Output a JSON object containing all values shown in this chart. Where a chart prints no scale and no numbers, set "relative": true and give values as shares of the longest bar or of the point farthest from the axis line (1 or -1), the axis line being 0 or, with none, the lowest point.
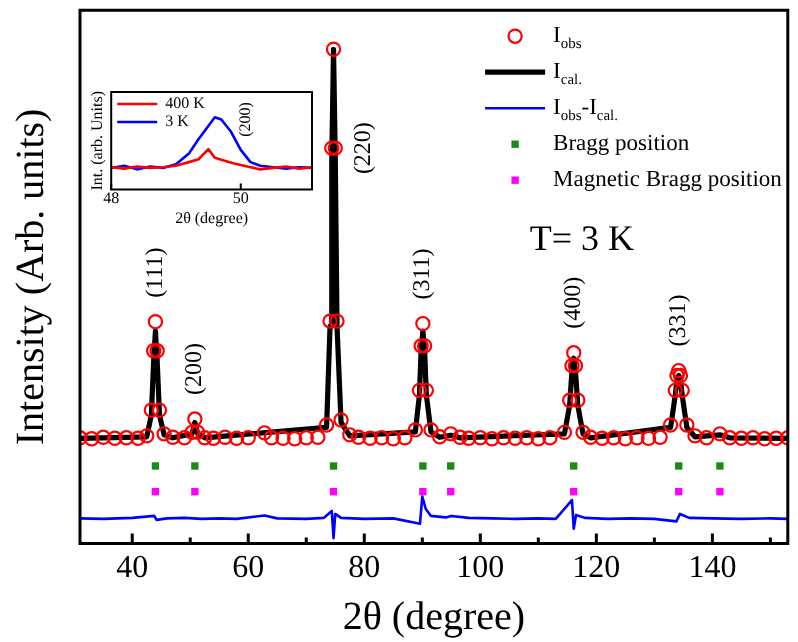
{
  "chart_data": [
    {
      "type": "line",
      "xlabel": "2θ (degree)",
      "ylabel": "Intensity (Arb. units)",
      "relative": true,
      "legend": "top right",
      "grid": false,
      "xlim": [
        31,
        153
      ],
      "xticks": [
        40,
        {
          "value": 50,
          "label": null
        },
        60,
        {
          "value": 70,
          "label": null
        },
        80,
        {
          "value": 90,
          "label": null
        },
        100,
        {
          "value": 110,
          "label": null
        },
        120,
        {
          "value": 130,
          "label": null
        },
        140,
        {
          "value": 150,
          "label": null
        }
      ],
      "series": [
        {
          "name": "I$_{obs}$",
          "type": "scatter",
          "marker": "circle",
          "color": "#ff0000",
          "x": [
            31,
            33,
            35,
            37,
            39,
            41,
            42.5,
            43.3,
            43.7,
            44.0,
            44.3,
            44.7,
            45.5,
            47,
            49,
            50.3,
            50.8,
            51.3,
            52.5,
            54,
            56,
            58,
            60,
            62.8,
            64,
            66,
            68,
            70,
            72,
            73.5,
            74.1,
            74.4,
            74.7,
            75.0,
            75.3,
            76,
            77.5,
            79,
            81,
            83,
            85,
            87,
            88.8,
            89.5,
            89.8,
            90.1,
            90.4,
            90.7,
            91.5,
            93,
            94.9,
            96.5,
            98,
            100,
            102,
            104,
            106,
            108,
            110,
            112,
            114.5,
            115.4,
            115.8,
            116.1,
            116.4,
            116.8,
            117.7,
            119,
            121,
            123,
            125,
            127,
            129,
            131,
            132.8,
            133.6,
            133.9,
            134.2,
            134.5,
            134.8,
            135.6,
            137,
            139,
            141.3,
            143,
            145,
            147,
            149,
            151,
            153
          ],
          "values": [
            0.214,
            0.212,
            0.215,
            0.213,
            0.214,
            0.213,
            0.218,
            0.27,
            0.39,
            0.449,
            0.39,
            0.27,
            0.222,
            0.215,
            0.214,
            0.225,
            0.252,
            0.225,
            0.214,
            0.213,
            0.215,
            0.213,
            0.214,
            0.224,
            0.214,
            0.213,
            0.212,
            0.214,
            0.215,
            0.24,
            0.45,
            0.8,
            1.0,
            0.8,
            0.45,
            0.25,
            0.22,
            0.215,
            0.213,
            0.214,
            0.212,
            0.214,
            0.23,
            0.31,
            0.4,
            0.445,
            0.4,
            0.31,
            0.23,
            0.216,
            0.222,
            0.215,
            0.213,
            0.214,
            0.212,
            0.214,
            0.213,
            0.214,
            0.212,
            0.214,
            0.225,
            0.29,
            0.36,
            0.386,
            0.36,
            0.29,
            0.225,
            0.215,
            0.213,
            0.214,
            0.212,
            0.214,
            0.213,
            0.215,
            0.24,
            0.31,
            0.34,
            0.35,
            0.34,
            0.31,
            0.24,
            0.218,
            0.214,
            0.222,
            0.214,
            0.213,
            0.214,
            0.212,
            0.213,
            0.214
          ]
        },
        {
          "name": "I$_{cal.}$",
          "type": "line",
          "color": "#000000",
          "x": [
            31,
            42.5,
            43.3,
            43.7,
            44.0,
            44.3,
            44.7,
            45.5,
            47,
            50.3,
            50.8,
            51.3,
            52.5,
            73.5,
            74.1,
            74.4,
            74.7,
            75.0,
            75.3,
            76,
            77.5,
            88.8,
            89.5,
            89.8,
            90.1,
            90.4,
            90.7,
            91.5,
            93,
            94.9,
            96.5,
            114.5,
            115.4,
            115.8,
            116.1,
            116.4,
            116.8,
            117.7,
            119,
            132.8,
            133.6,
            133.9,
            134.2,
            134.5,
            134.8,
            135.6,
            137,
            141.3,
            143,
            153
          ],
          "values": [
            0.213,
            0.216,
            0.26,
            0.37,
            0.43,
            0.37,
            0.26,
            0.22,
            0.214,
            0.222,
            0.245,
            0.222,
            0.214,
            0.235,
            0.44,
            0.78,
            1.0,
            0.78,
            0.44,
            0.245,
            0.218,
            0.226,
            0.3,
            0.39,
            0.43,
            0.39,
            0.3,
            0.226,
            0.215,
            0.219,
            0.214,
            0.222,
            0.28,
            0.35,
            0.375,
            0.35,
            0.28,
            0.222,
            0.214,
            0.235,
            0.3,
            0.33,
            0.34,
            0.33,
            0.3,
            0.235,
            0.216,
            0.22,
            0.214,
            0.213
          ]
        },
        {
          "name": "I$_{obs}$-I$_{cal.}$",
          "type": "line",
          "color": "#0000ff",
          "x": [
            31,
            35,
            40,
            43.8,
            44.2,
            46,
            49,
            52,
            55,
            58,
            62.8,
            65,
            70,
            73,
            74.4,
            74.7,
            75.0,
            76,
            80,
            85,
            89.6,
            90.0,
            90.6,
            91.5,
            94,
            95,
            98,
            102,
            106,
            110,
            113,
            115.8,
            116.1,
            116.5,
            118,
            122,
            126,
            130,
            133.8,
            134.4,
            136,
            140,
            145,
            150,
            153
          ],
          "values": [
            0.051,
            0.05,
            0.052,
            0.056,
            0.048,
            0.051,
            0.052,
            0.05,
            0.051,
            0.05,
            0.057,
            0.051,
            0.05,
            0.052,
            0.066,
            0.011,
            0.06,
            0.052,
            0.05,
            0.051,
            0.04,
            0.095,
            0.07,
            0.056,
            0.053,
            0.056,
            0.052,
            0.051,
            0.05,
            0.051,
            0.05,
            0.088,
            0.03,
            0.058,
            0.052,
            0.05,
            0.051,
            0.05,
            0.045,
            0.06,
            0.052,
            0.051,
            0.05,
            0.051,
            0.05
          ]
        },
        {
          "name": "Bragg position",
          "type": "scatter",
          "marker": "square",
          "color": "#1a8a1a",
          "x": [
            44.0,
            50.8,
            74.7,
            90.1,
            94.9,
            116.1,
            134.2,
            141.3
          ],
          "values": [
            0.157,
            0.157,
            0.157,
            0.157,
            0.157,
            0.157,
            0.157,
            0.157
          ]
        },
        {
          "name": "Magnetic Bragg position",
          "type": "scatter",
          "marker": "square",
          "color": "#ff00ff",
          "x": [
            44.0,
            50.8,
            74.7,
            90.1,
            94.9,
            116.1,
            134.2,
            141.3
          ],
          "values": [
            0.105,
            0.105,
            0.105,
            0.105,
            0.105,
            0.105,
            0.105,
            0.105
          ]
        }
      ],
      "annotations": [
        {
          "text": "(111)",
          "x": 44.0,
          "y": 0.449
        },
        {
          "text": "(200)",
          "x": 50.8,
          "y": 0.252
        },
        {
          "text": "(220)",
          "x": 75.0,
          "y": 0.8
        },
        {
          "text": "(311)",
          "x": 90.1,
          "y": 0.445
        },
        {
          "text": "(400)",
          "x": 116.1,
          "y": 0.386
        },
        {
          "text": "(331)",
          "x": 134.2,
          "y": 0.35
        },
        "T= 3 K"
      ]
    },
    {
      "type": "line",
      "xlabel": "2θ (degree)",
      "ylabel": "Int. (arb. Units)",
      "relative": true,
      "legend": "top left",
      "grid": false,
      "xlim": [
        48,
        51.1
      ],
      "xticks": [
        48,
        50
      ],
      "series": [
        {
          "name": "400 K",
          "color": "#ff0000",
          "x": [
            48.0,
            48.2,
            48.4,
            48.6,
            48.8,
            49.0,
            49.2,
            49.35,
            49.5,
            49.6,
            49.75,
            49.9,
            50.1,
            50.3,
            50.5,
            50.7,
            50.9,
            51.1
          ],
          "values": [
            0.31,
            0.29,
            0.32,
            0.3,
            0.31,
            0.33,
            0.38,
            0.42,
            0.56,
            0.44,
            0.4,
            0.36,
            0.32,
            0.28,
            0.3,
            0.32,
            0.29,
            0.31
          ]
        },
        {
          "name": "3 K",
          "color": "#0000ff",
          "x": [
            48.0,
            48.2,
            48.4,
            48.6,
            48.8,
            49.0,
            49.2,
            49.35,
            49.5,
            49.6,
            49.7,
            49.85,
            50.0,
            50.15,
            50.3,
            50.5,
            50.7,
            50.9,
            51.1
          ],
          "values": [
            0.3,
            0.33,
            0.28,
            0.32,
            0.3,
            0.35,
            0.5,
            0.7,
            0.88,
            1.0,
            0.97,
            0.8,
            0.55,
            0.38,
            0.33,
            0.31,
            0.29,
            0.31,
            0.3
          ]
        }
      ],
      "annotations": [
        {
          "text": "(200)",
          "x": 49.7,
          "y": 0.97
        }
      ]
    }
  ]
}
